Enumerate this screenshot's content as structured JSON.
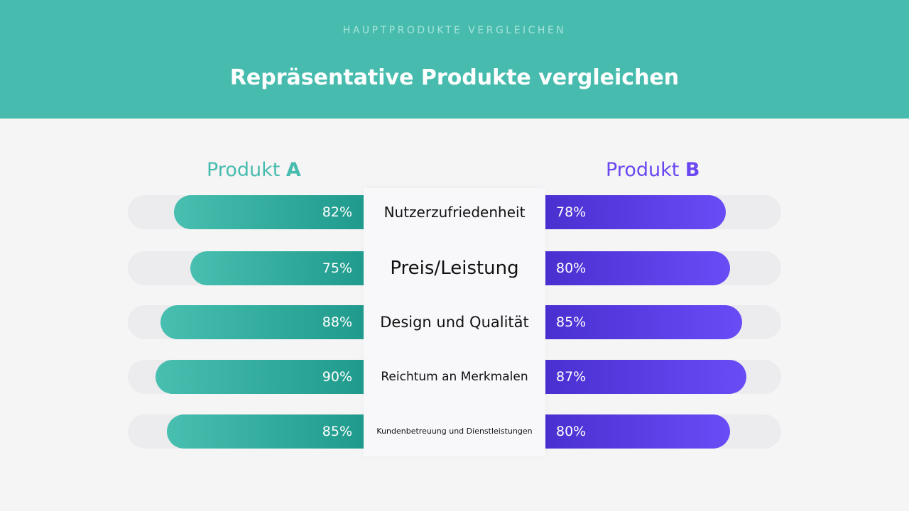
{
  "header": {
    "kicker": "HAUPTPRODUKTE VERGLEICHEN",
    "title": "Repräsentative Produkte vergleichen"
  },
  "chart_data": {
    "type": "bar",
    "orientation": "horizontal-butterfly",
    "categories": [
      "Nutzerzufriedenheit",
      "Preis/Leistung",
      "Design und Qualität",
      "Reichtum an Merkmalen",
      "Kundenbetreuung und Dienstleistungen"
    ],
    "series": [
      {
        "name": "Produkt A",
        "prefix": "Produkt ",
        "letter": "A",
        "color": "#47bcae",
        "values": [
          82,
          75,
          88,
          90,
          85
        ],
        "labels": [
          "82%",
          "75%",
          "88%",
          "90%",
          "85%"
        ]
      },
      {
        "name": "Produkt B",
        "prefix": "Produkt ",
        "letter": "B",
        "color": "#6a47f0",
        "values": [
          78,
          80,
          85,
          87,
          80
        ],
        "labels": [
          "78%",
          "80%",
          "85%",
          "87%",
          "80%"
        ]
      }
    ],
    "xlim": [
      0,
      100
    ],
    "unit": "%"
  }
}
